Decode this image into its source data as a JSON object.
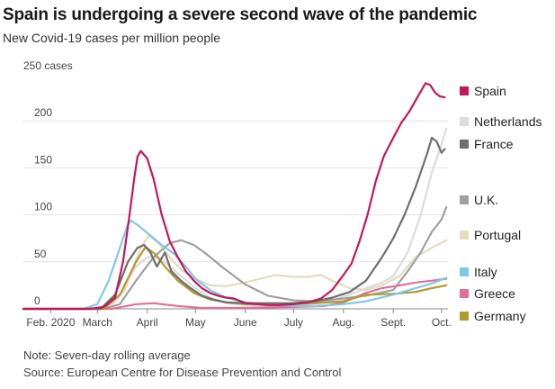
{
  "chart_data": {
    "type": "line",
    "title": "Spain is undergoing a severe second wave of the pandemic",
    "subtitle": "New Covid-19 cases per million people",
    "y_unit_label": "250 cases",
    "ylim": [
      0,
      250
    ],
    "y_ticks": [
      0,
      50,
      100,
      150,
      200
    ],
    "xlim": [
      "2020-01-15",
      "2020-10-05"
    ],
    "x_ticks": [
      {
        "date": "2020-02-01",
        "label": "Feb. 2020"
      },
      {
        "date": "2020-03-01",
        "label": "March"
      },
      {
        "date": "2020-04-01",
        "label": "April"
      },
      {
        "date": "2020-05-01",
        "label": "May"
      },
      {
        "date": "2020-06-01",
        "label": "June"
      },
      {
        "date": "2020-07-01",
        "label": "July"
      },
      {
        "date": "2020-08-01",
        "label": "Aug."
      },
      {
        "date": "2020-09-01",
        "label": "Sept."
      },
      {
        "date": "2020-10-01",
        "label": "Oct."
      }
    ],
    "grid": true,
    "legend_position": "right",
    "series": [
      {
        "name": "Spain",
        "color": "#c2185b",
        "points": [
          [
            "2020-01-15",
            0
          ],
          [
            "2020-02-25",
            0
          ],
          [
            "2020-03-05",
            2
          ],
          [
            "2020-03-12",
            12
          ],
          [
            "2020-03-17",
            50
          ],
          [
            "2020-03-21",
            100
          ],
          [
            "2020-03-24",
            140
          ],
          [
            "2020-03-26",
            162
          ],
          [
            "2020-03-28",
            168
          ],
          [
            "2020-04-01",
            160
          ],
          [
            "2020-04-05",
            138
          ],
          [
            "2020-04-10",
            100
          ],
          [
            "2020-04-15",
            72
          ],
          [
            "2020-04-20",
            55
          ],
          [
            "2020-04-25",
            40
          ],
          [
            "2020-04-30",
            30
          ],
          [
            "2020-05-05",
            22
          ],
          [
            "2020-05-10",
            17
          ],
          [
            "2020-05-15",
            14
          ],
          [
            "2020-05-20",
            12
          ],
          [
            "2020-05-25",
            11
          ],
          [
            "2020-06-01",
            6
          ],
          [
            "2020-06-08",
            5
          ],
          [
            "2020-06-15",
            4
          ],
          [
            "2020-06-22",
            4
          ],
          [
            "2020-07-01",
            5
          ],
          [
            "2020-07-10",
            7
          ],
          [
            "2020-07-18",
            11
          ],
          [
            "2020-07-25",
            20
          ],
          [
            "2020-08-01",
            36
          ],
          [
            "2020-08-06",
            48
          ],
          [
            "2020-08-11",
            72
          ],
          [
            "2020-08-16",
            100
          ],
          [
            "2020-08-21",
            135
          ],
          [
            "2020-08-26",
            162
          ],
          [
            "2020-09-01",
            182
          ],
          [
            "2020-09-06",
            198
          ],
          [
            "2020-09-11",
            210
          ],
          [
            "2020-09-16",
            225
          ],
          [
            "2020-09-21",
            240
          ],
          [
            "2020-09-24",
            238
          ],
          [
            "2020-09-27",
            230
          ],
          [
            "2020-09-30",
            226
          ],
          [
            "2020-10-03",
            225
          ]
        ]
      },
      {
        "name": "Netherlands",
        "color": "#dcdcdc",
        "points": [
          [
            "2020-01-15",
            0
          ],
          [
            "2020-03-05",
            0
          ],
          [
            "2020-03-15",
            15
          ],
          [
            "2020-03-25",
            45
          ],
          [
            "2020-04-01",
            55
          ],
          [
            "2020-04-08",
            55
          ],
          [
            "2020-04-15",
            45
          ],
          [
            "2020-04-22",
            35
          ],
          [
            "2020-05-01",
            22
          ],
          [
            "2020-05-10",
            12
          ],
          [
            "2020-05-20",
            6
          ],
          [
            "2020-06-01",
            4
          ],
          [
            "2020-06-15",
            3
          ],
          [
            "2020-07-01",
            4
          ],
          [
            "2020-07-15",
            6
          ],
          [
            "2020-07-25",
            9
          ],
          [
            "2020-08-05",
            15
          ],
          [
            "2020-08-15",
            22
          ],
          [
            "2020-08-25",
            28
          ],
          [
            "2020-09-01",
            35
          ],
          [
            "2020-09-10",
            60
          ],
          [
            "2020-09-18",
            100
          ],
          [
            "2020-09-25",
            145
          ],
          [
            "2020-10-01",
            175
          ],
          [
            "2020-10-04",
            192
          ]
        ]
      },
      {
        "name": "France",
        "color": "#6e6e6e",
        "points": [
          [
            "2020-01-15",
            0
          ],
          [
            "2020-03-03",
            0
          ],
          [
            "2020-03-12",
            15
          ],
          [
            "2020-03-20",
            50
          ],
          [
            "2020-03-26",
            65
          ],
          [
            "2020-03-30",
            68
          ],
          [
            "2020-04-03",
            60
          ],
          [
            "2020-04-07",
            45
          ],
          [
            "2020-04-12",
            60
          ],
          [
            "2020-04-16",
            40
          ],
          [
            "2020-04-22",
            30
          ],
          [
            "2020-04-28",
            22
          ],
          [
            "2020-05-05",
            14
          ],
          [
            "2020-05-12",
            10
          ],
          [
            "2020-05-20",
            7
          ],
          [
            "2020-06-01",
            6
          ],
          [
            "2020-06-15",
            6
          ],
          [
            "2020-07-01",
            6
          ],
          [
            "2020-07-15",
            8
          ],
          [
            "2020-07-25",
            12
          ],
          [
            "2020-08-05",
            18
          ],
          [
            "2020-08-15",
            30
          ],
          [
            "2020-08-25",
            55
          ],
          [
            "2020-09-01",
            75
          ],
          [
            "2020-09-08",
            100
          ],
          [
            "2020-09-15",
            130
          ],
          [
            "2020-09-22",
            165
          ],
          [
            "2020-09-25",
            182
          ],
          [
            "2020-09-28",
            178
          ],
          [
            "2020-10-01",
            166
          ],
          [
            "2020-10-03",
            170
          ]
        ]
      },
      {
        "name": "U.K.",
        "color": "#a0a0a0",
        "points": [
          [
            "2020-01-15",
            0
          ],
          [
            "2020-03-05",
            0
          ],
          [
            "2020-03-15",
            5
          ],
          [
            "2020-03-25",
            30
          ],
          [
            "2020-04-05",
            55
          ],
          [
            "2020-04-15",
            70
          ],
          [
            "2020-04-22",
            73
          ],
          [
            "2020-04-30",
            68
          ],
          [
            "2020-05-08",
            58
          ],
          [
            "2020-05-18",
            44
          ],
          [
            "2020-06-01",
            26
          ],
          [
            "2020-06-15",
            14
          ],
          [
            "2020-07-01",
            9
          ],
          [
            "2020-07-15",
            8
          ],
          [
            "2020-08-01",
            11
          ],
          [
            "2020-08-15",
            14
          ],
          [
            "2020-09-01",
            20
          ],
          [
            "2020-09-10",
            40
          ],
          [
            "2020-09-18",
            60
          ],
          [
            "2020-09-25",
            82
          ],
          [
            "2020-10-01",
            95
          ],
          [
            "2020-10-04",
            108
          ]
        ]
      },
      {
        "name": "Portugal",
        "color": "#e3dcc0",
        "points": [
          [
            "2020-01-15",
            0
          ],
          [
            "2020-03-08",
            0
          ],
          [
            "2020-03-18",
            20
          ],
          [
            "2020-03-28",
            65
          ],
          [
            "2020-04-02",
            78
          ],
          [
            "2020-04-08",
            70
          ],
          [
            "2020-04-15",
            55
          ],
          [
            "2020-04-22",
            42
          ],
          [
            "2020-05-01",
            32
          ],
          [
            "2020-05-10",
            25
          ],
          [
            "2020-05-20",
            24
          ],
          [
            "2020-06-01",
            28
          ],
          [
            "2020-06-10",
            32
          ],
          [
            "2020-06-20",
            36
          ],
          [
            "2020-07-01",
            34
          ],
          [
            "2020-07-10",
            34
          ],
          [
            "2020-07-18",
            36
          ],
          [
            "2020-07-25",
            30
          ],
          [
            "2020-08-05",
            22
          ],
          [
            "2020-08-15",
            20
          ],
          [
            "2020-08-25",
            25
          ],
          [
            "2020-09-05",
            35
          ],
          [
            "2020-09-15",
            55
          ],
          [
            "2020-09-25",
            65
          ],
          [
            "2020-10-04",
            73
          ]
        ]
      },
      {
        "name": "Italy",
        "color": "#7ec8e8",
        "points": [
          [
            "2020-01-15",
            0
          ],
          [
            "2020-02-21",
            0
          ],
          [
            "2020-03-01",
            5
          ],
          [
            "2020-03-08",
            30
          ],
          [
            "2020-03-15",
            65
          ],
          [
            "2020-03-20",
            90
          ],
          [
            "2020-03-22",
            94
          ],
          [
            "2020-03-27",
            88
          ],
          [
            "2020-04-03",
            78
          ],
          [
            "2020-04-10",
            68
          ],
          [
            "2020-04-18",
            58
          ],
          [
            "2020-04-25",
            45
          ],
          [
            "2020-05-01",
            32
          ],
          [
            "2020-05-10",
            20
          ],
          [
            "2020-05-20",
            12
          ],
          [
            "2020-06-01",
            7
          ],
          [
            "2020-06-15",
            5
          ],
          [
            "2020-07-01",
            3
          ],
          [
            "2020-07-15",
            3
          ],
          [
            "2020-08-01",
            5
          ],
          [
            "2020-08-15",
            8
          ],
          [
            "2020-09-01",
            15
          ],
          [
            "2020-09-15",
            22
          ],
          [
            "2020-09-25",
            27
          ],
          [
            "2020-10-04",
            33
          ]
        ]
      },
      {
        "name": "Greece",
        "color": "#e0709a",
        "points": [
          [
            "2020-01-15",
            0
          ],
          [
            "2020-03-10",
            0
          ],
          [
            "2020-03-25",
            5
          ],
          [
            "2020-04-05",
            6
          ],
          [
            "2020-04-20",
            3
          ],
          [
            "2020-05-05",
            1
          ],
          [
            "2020-06-01",
            1
          ],
          [
            "2020-07-01",
            2
          ],
          [
            "2020-07-20",
            3
          ],
          [
            "2020-08-01",
            7
          ],
          [
            "2020-08-15",
            17
          ],
          [
            "2020-08-25",
            22
          ],
          [
            "2020-09-05",
            25
          ],
          [
            "2020-09-15",
            28
          ],
          [
            "2020-09-25",
            30
          ],
          [
            "2020-10-04",
            32
          ]
        ]
      },
      {
        "name": "Germany",
        "color": "#b39a2e",
        "points": [
          [
            "2020-01-15",
            0
          ],
          [
            "2020-03-05",
            0
          ],
          [
            "2020-03-15",
            15
          ],
          [
            "2020-03-25",
            50
          ],
          [
            "2020-03-31",
            66
          ],
          [
            "2020-04-06",
            58
          ],
          [
            "2020-04-12",
            45
          ],
          [
            "2020-04-20",
            30
          ],
          [
            "2020-04-30",
            17
          ],
          [
            "2020-05-10",
            10
          ],
          [
            "2020-05-20",
            7
          ],
          [
            "2020-06-01",
            5
          ],
          [
            "2020-06-20",
            5
          ],
          [
            "2020-07-01",
            5
          ],
          [
            "2020-07-15",
            6
          ],
          [
            "2020-08-01",
            8
          ],
          [
            "2020-08-15",
            15
          ],
          [
            "2020-09-01",
            16
          ],
          [
            "2020-09-15",
            18
          ],
          [
            "2020-09-25",
            22
          ],
          [
            "2020-10-04",
            25
          ]
        ]
      }
    ]
  },
  "notes": {
    "note": "Note: Seven-day rolling average",
    "source": "Source: European Centre for Disease Prevention and Control"
  }
}
